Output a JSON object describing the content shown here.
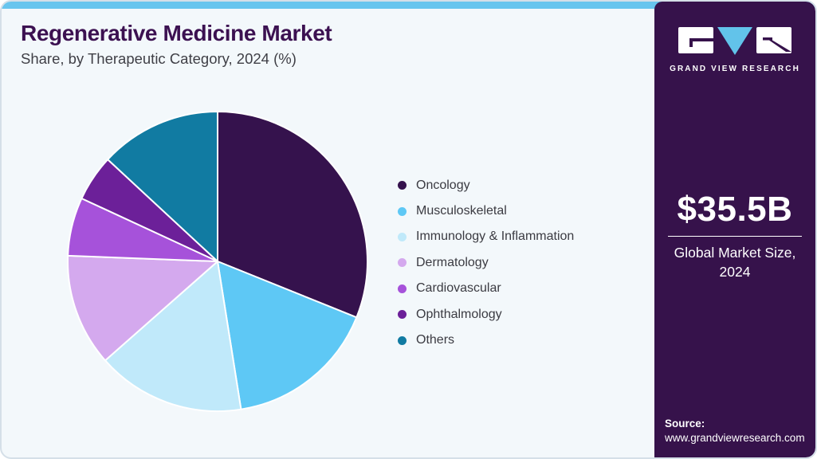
{
  "page": {
    "background": "#f3f8fb",
    "accent_bar_color": "#68c5ee",
    "border_color": "#d5dfe8"
  },
  "header": {
    "title": "Regenerative Medicine Market",
    "subtitle": "Share, by Therapeutic Category, 2024 (%)",
    "title_color": "#3c1151"
  },
  "chart_data": {
    "type": "pie",
    "title": "Regenerative Medicine Market Share, by Therapeutic Category, 2024 (%)",
    "labels": [
      "Oncology",
      "Musculoskeletal",
      "Immunology & Inflammation",
      "Dermatology",
      "Cardiovascular",
      "Ophthalmology",
      "Others"
    ],
    "values": [
      31.1,
      16.4,
      16.0,
      12.1,
      6.3,
      5.0,
      13.1
    ],
    "unit": "%",
    "colors": [
      "#35124d",
      "#5ec8f5",
      "#c0e9fa",
      "#d4a9ee",
      "#a652da",
      "#6c2099",
      "#117ba2"
    ],
    "start_angle_deg_from_top": 0,
    "direction": "clockwise",
    "legend_position": "right",
    "slice_gap_color": "#ffffff"
  },
  "sidebar": {
    "background": "#36124b",
    "logo": {
      "brand": "GRAND VIEW RESEARCH",
      "triangle_color": "#62c3ea"
    },
    "market_size": {
      "value": "$35.5B",
      "label": "Global Market Size, 2024"
    },
    "source": {
      "label": "Source:",
      "url": "www.grandviewresearch.com"
    }
  }
}
